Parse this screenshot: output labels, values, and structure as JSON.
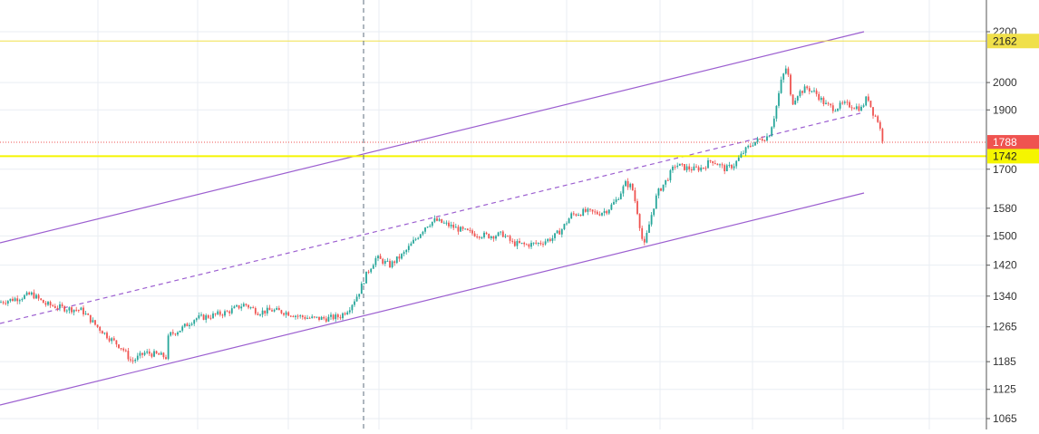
{
  "chart_data": {
    "type": "candlestick",
    "y_scale": "log",
    "ylim": [
      1040,
      2240
    ],
    "grid": true,
    "y_ticks": [
      1065,
      1125,
      1185,
      1265,
      1340,
      1420,
      1500,
      1580,
      1700,
      1900,
      2000,
      2200
    ],
    "price_line": {
      "value": 1788,
      "label": "1788",
      "color": "#ef5350"
    },
    "horizontal_levels": [
      {
        "value": 2162,
        "label": "2162",
        "color": "#f0e04a"
      },
      {
        "value": 1742,
        "label": "1742",
        "color": "#f5f500"
      }
    ],
    "colors": {
      "up": "#26a69a",
      "down": "#ef5350",
      "channel": "#9c5fd0",
      "grid": "#e9eef3",
      "axis_text": "#333333"
    },
    "price_path": [
      [
        0,
        1325
      ],
      [
        20,
        1335
      ],
      [
        35,
        1345
      ],
      [
        50,
        1320
      ],
      [
        70,
        1310
      ],
      [
        90,
        1305
      ],
      [
        105,
        1270
      ],
      [
        120,
        1240
      ],
      [
        135,
        1215
      ],
      [
        145,
        1185
      ],
      [
        160,
        1205
      ],
      [
        175,
        1200
      ],
      [
        183,
        1195
      ],
      [
        186,
        1245
      ],
      [
        200,
        1260
      ],
      [
        215,
        1285
      ],
      [
        230,
        1290
      ],
      [
        250,
        1300
      ],
      [
        270,
        1320
      ],
      [
        285,
        1300
      ],
      [
        300,
        1305
      ],
      [
        315,
        1300
      ],
      [
        330,
        1290
      ],
      [
        345,
        1285
      ],
      [
        360,
        1285
      ],
      [
        375,
        1290
      ],
      [
        385,
        1310
      ],
      [
        395,
        1345
      ],
      [
        405,
        1400
      ],
      [
        415,
        1440
      ],
      [
        430,
        1420
      ],
      [
        445,
        1450
      ],
      [
        458,
        1490
      ],
      [
        470,
        1530
      ],
      [
        480,
        1545
      ],
      [
        495,
        1530
      ],
      [
        510,
        1515
      ],
      [
        525,
        1505
      ],
      [
        540,
        1500
      ],
      [
        555,
        1505
      ],
      [
        565,
        1480
      ],
      [
        580,
        1475
      ],
      [
        595,
        1480
      ],
      [
        610,
        1495
      ],
      [
        620,
        1520
      ],
      [
        630,
        1560
      ],
      [
        645,
        1570
      ],
      [
        660,
        1565
      ],
      [
        670,
        1575
      ],
      [
        680,
        1605
      ],
      [
        690,
        1655
      ],
      [
        697,
        1645
      ],
      [
        703,
        1570
      ],
      [
        710,
        1465
      ],
      [
        718,
        1555
      ],
      [
        725,
        1625
      ],
      [
        735,
        1665
      ],
      [
        745,
        1715
      ],
      [
        755,
        1705
      ],
      [
        765,
        1700
      ],
      [
        775,
        1705
      ],
      [
        785,
        1730
      ],
      [
        800,
        1700
      ],
      [
        810,
        1715
      ],
      [
        820,
        1755
      ],
      [
        830,
        1785
      ],
      [
        840,
        1800
      ],
      [
        848,
        1810
      ],
      [
        855,
        1890
      ],
      [
        862,
        2010
      ],
      [
        868,
        2065
      ],
      [
        873,
        1920
      ],
      [
        880,
        1960
      ],
      [
        890,
        1980
      ],
      [
        900,
        1960
      ],
      [
        910,
        1920
      ],
      [
        920,
        1905
      ],
      [
        930,
        1920
      ],
      [
        940,
        1915
      ],
      [
        950,
        1905
      ],
      [
        957,
        1950
      ],
      [
        962,
        1895
      ],
      [
        968,
        1865
      ],
      [
        975,
        1780
      ]
    ]
  }
}
